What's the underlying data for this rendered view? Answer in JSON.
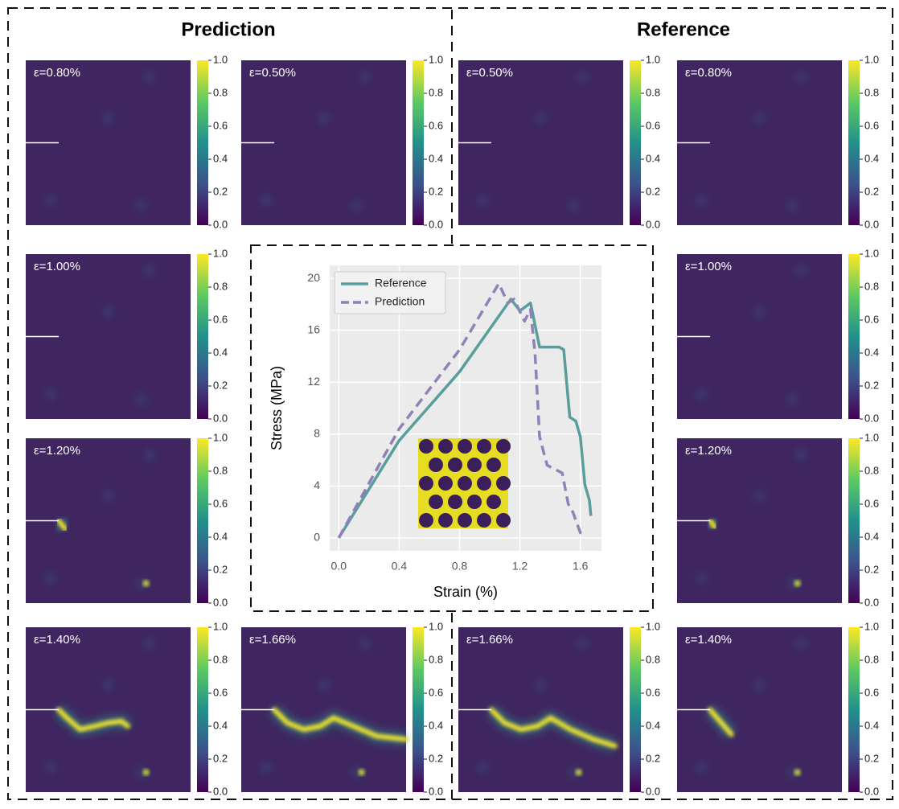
{
  "figure": {
    "headers": [
      "Prediction",
      "Reference"
    ],
    "panels": [
      {
        "label": "ε=0.80%"
      },
      {
        "label": "ε=0.50%"
      },
      {
        "label": "ε=0.50%"
      },
      {
        "label": "ε=0.80%"
      },
      {
        "label": "ε=1.00%"
      },
      {
        "label": "ε=1.00%"
      },
      {
        "label": "ε=1.20%"
      },
      {
        "label": "ε=1.20%"
      },
      {
        "label": "ε=1.40%"
      },
      {
        "label": "ε=1.66%"
      },
      {
        "label": "ε=1.66%"
      },
      {
        "label": "ε=1.40%"
      }
    ],
    "colorbar": {
      "lim": [
        0,
        1
      ],
      "ticks": [
        {
          "value": 0,
          "label": "0.0"
        },
        {
          "value": 0.2,
          "label": "0.2"
        },
        {
          "value": 0.4,
          "label": "0.4"
        },
        {
          "value": 0.6,
          "label": "0.6"
        },
        {
          "value": 0.8,
          "label": "0.8"
        },
        {
          "value": 1,
          "label": "1.0"
        }
      ]
    }
  },
  "chart_data": {
    "type": "line",
    "x_label": "Strain (%)",
    "y_label": "Stress (MPa)",
    "xlim": [
      -0.06,
      1.74
    ],
    "ylim": [
      -1,
      21
    ],
    "xticks": [
      {
        "value": 0,
        "label": "0.0"
      },
      {
        "value": 0.4,
        "label": "0.4"
      },
      {
        "value": 0.8,
        "label": "0.8"
      },
      {
        "value": 1.2,
        "label": "1.2"
      },
      {
        "value": 1.6,
        "label": "1.6"
      }
    ],
    "yticks": [
      0,
      4,
      8,
      12,
      16,
      20
    ],
    "grid": true,
    "legend": "upper left",
    "series": [
      {
        "name": "Reference",
        "color": "#5a9e9c",
        "dash": false,
        "x": [
          0,
          0.4,
          0.8,
          1.14,
          1.2,
          1.27,
          1.33,
          1.46,
          1.49,
          1.53,
          1.57,
          1.6,
          1.63,
          1.66,
          1.67
        ],
        "values": [
          0,
          7.5,
          12.8,
          18.4,
          17.5,
          18.1,
          14.7,
          14.7,
          14.5,
          9.3,
          9.0,
          7.8,
          4.1,
          2.9,
          1.7
        ]
      },
      {
        "name": "Prediction",
        "color": "#8e82b8",
        "dash": true,
        "x": [
          0,
          0.4,
          0.8,
          1.06,
          1.12,
          1.16,
          1.23,
          1.27,
          1.3,
          1.33,
          1.38,
          1.48,
          1.52,
          1.55,
          1.6,
          1.63
        ],
        "values": [
          0,
          8.4,
          14.5,
          19.6,
          18.1,
          18.4,
          16.7,
          17.6,
          14.2,
          7.8,
          5.6,
          5.0,
          2.6,
          2.0,
          0.4,
          0.3
        ]
      }
    ]
  }
}
